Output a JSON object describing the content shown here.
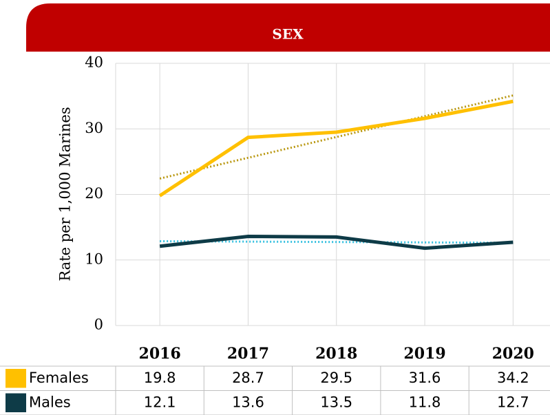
{
  "chart_data": {
    "type": "line",
    "title": "SEX",
    "ylabel": "Rate per 1,000 Marines",
    "categories": [
      "2016",
      "2017",
      "2018",
      "2019",
      "2020"
    ],
    "series": [
      {
        "name": "Females",
        "color": "#ffc000",
        "values": [
          19.8,
          28.7,
          29.5,
          31.6,
          34.2
        ]
      },
      {
        "name": "Males",
        "color": "#0e3b47",
        "values": [
          12.1,
          13.6,
          13.5,
          11.8,
          12.7
        ]
      }
    ],
    "trendlines": [
      {
        "color": "#b8960c",
        "values": [
          22.42,
          35.1
        ]
      },
      {
        "color": "#35c0e0",
        "values": [
          12.86,
          12.62
        ]
      }
    ],
    "ylim": [
      0,
      40
    ],
    "yticks": [
      0,
      10,
      20,
      30,
      40
    ],
    "grid": true
  }
}
